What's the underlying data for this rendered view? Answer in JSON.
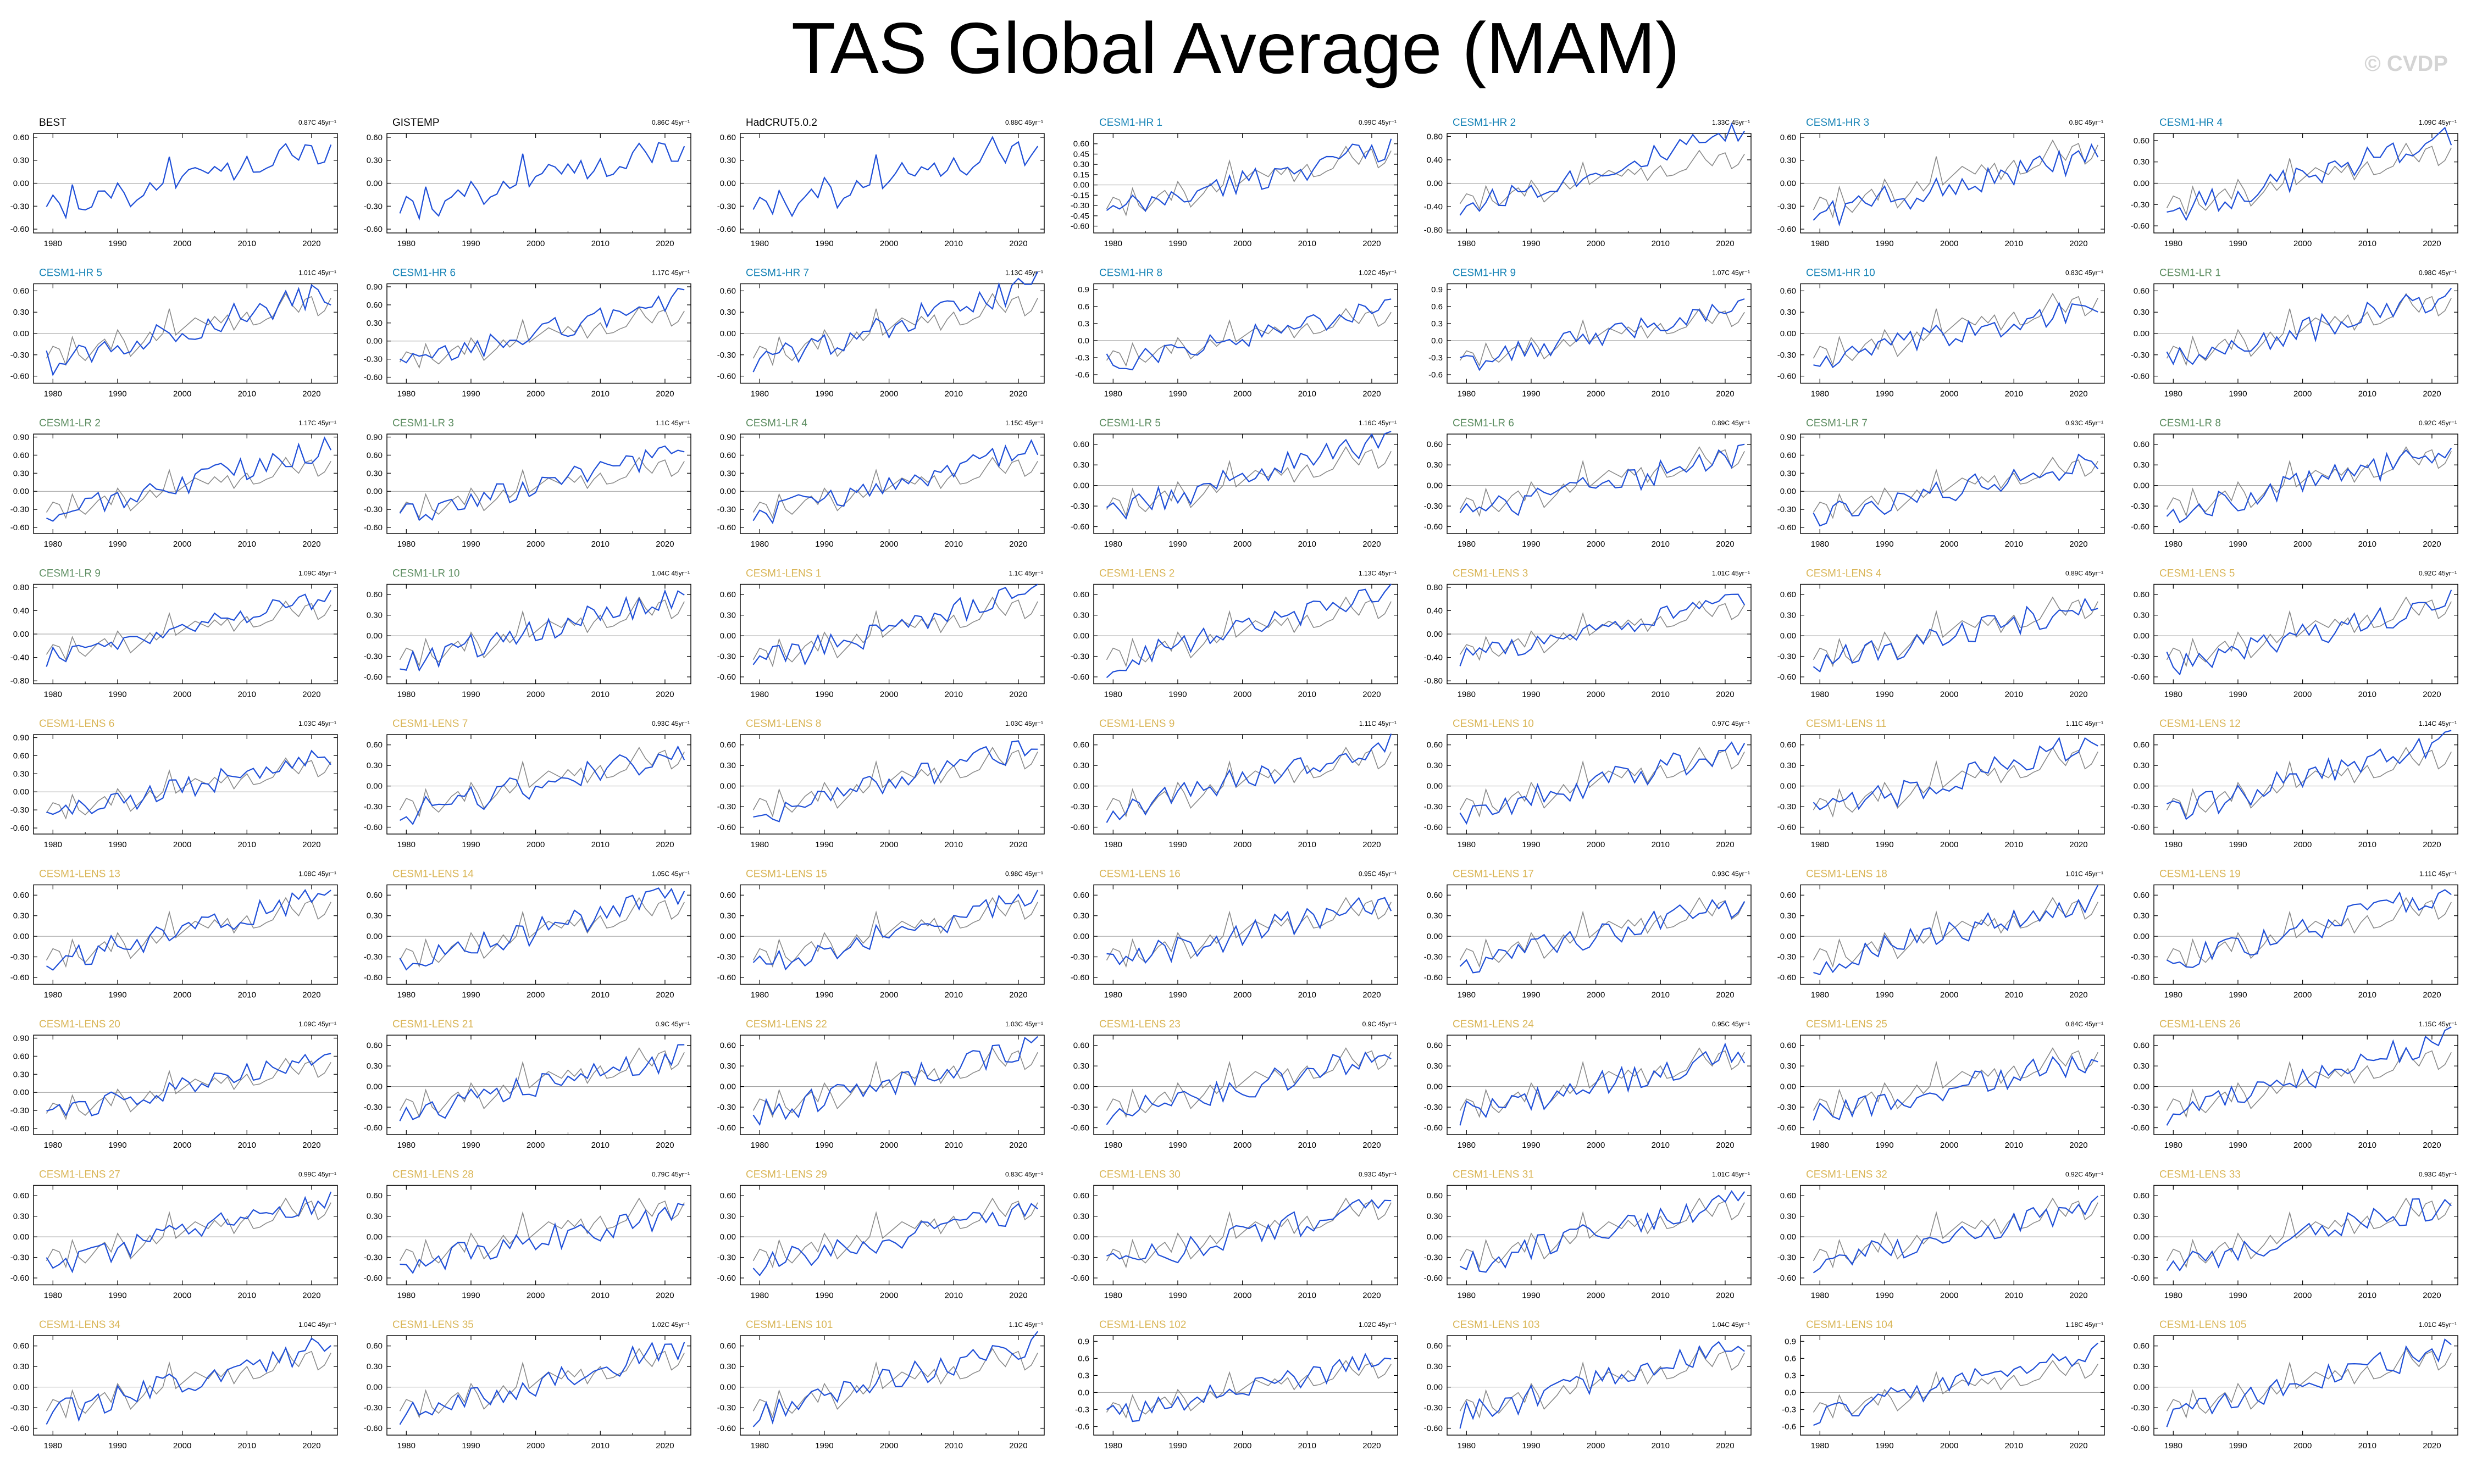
{
  "title": "TAS Global Average (MAM)",
  "watermark": "© CVDP",
  "colors": {
    "observed": "#1f4fd8",
    "reference": "#8a8a8a",
    "title_obs": "#000000",
    "title_hr": "#1683b6",
    "title_lr": "#5e8e62",
    "title_lens": "#d9b556",
    "axis": "#000000",
    "zero_line": "#9a9a9a"
  },
  "x_ticks": [
    "1980",
    "1990",
    "2000",
    "2010",
    "2020"
  ],
  "x_range": [
    1977,
    2024
  ],
  "panels": [
    {
      "name": "BEST",
      "trend": "0.87C 45yr⁻¹",
      "kind": "obs",
      "yticks": [
        "0.60",
        "0.30",
        "0.00",
        "-0.30",
        "-0.60"
      ],
      "ylim": [
        -0.65,
        0.65
      ]
    },
    {
      "name": "GISTEMP",
      "trend": "0.86C 45yr⁻¹",
      "kind": "obs",
      "yticks": [
        "0.60",
        "0.30",
        "0.00",
        "-0.30",
        "-0.60"
      ],
      "ylim": [
        -0.65,
        0.65
      ]
    },
    {
      "name": "HadCRUT5.0.2",
      "trend": "0.88C 45yr⁻¹",
      "kind": "obs",
      "yticks": [
        "0.60",
        "0.30",
        "0.00",
        "-0.30",
        "-0.60"
      ],
      "ylim": [
        -0.65,
        0.65
      ]
    },
    {
      "name": "CESM1-HR 1",
      "trend": "0.99C 45yr⁻¹",
      "kind": "hr",
      "yticks": [
        "0.60",
        "0.45",
        "0.30",
        "0.15",
        "0.00",
        "-0.15",
        "-0.30",
        "-0.45",
        "-0.60"
      ],
      "ylim": [
        -0.7,
        0.75
      ]
    },
    {
      "name": "CESM1-HR 2",
      "trend": "1.33C 45yr⁻¹",
      "kind": "hr",
      "yticks": [
        "0.80",
        "0.40",
        "0.00",
        "-0.40",
        "-0.80"
      ],
      "ylim": [
        -0.85,
        0.85
      ]
    },
    {
      "name": "CESM1-HR 3",
      "trend": "0.8C 45yr⁻¹",
      "kind": "hr",
      "yticks": [
        "0.60",
        "0.30",
        "0.00",
        "-0.30",
        "-0.60"
      ],
      "ylim": [
        -0.65,
        0.65
      ]
    },
    {
      "name": "CESM1-HR 4",
      "trend": "1.09C 45yr⁻¹",
      "kind": "hr",
      "yticks": [
        "0.60",
        "0.30",
        "0.00",
        "-0.30",
        "-0.60"
      ],
      "ylim": [
        -0.7,
        0.7
      ]
    },
    {
      "name": "CESM1-HR 5",
      "trend": "1.01C 45yr⁻¹",
      "kind": "hr",
      "yticks": [
        "0.60",
        "0.30",
        "0.00",
        "-0.30",
        "-0.60"
      ],
      "ylim": [
        -0.7,
        0.7
      ]
    },
    {
      "name": "CESM1-HR 6",
      "trend": "1.17C 45yr⁻¹",
      "kind": "hr",
      "yticks": [
        "0.90",
        "0.60",
        "0.30",
        "0.00",
        "-0.30",
        "-0.60"
      ],
      "ylim": [
        -0.7,
        0.95
      ]
    },
    {
      "name": "CESM1-HR 7",
      "trend": "1.13C 45yr⁻¹",
      "kind": "hr",
      "yticks": [
        "0.60",
        "0.30",
        "0.00",
        "-0.30",
        "-0.60"
      ],
      "ylim": [
        -0.7,
        0.7
      ]
    },
    {
      "name": "CESM1-HR 8",
      "trend": "1.02C 45yr⁻¹",
      "kind": "hr",
      "yticks": [
        "0.9",
        "0.6",
        "0.3",
        "0.0",
        "-0.3",
        "-0.6"
      ],
      "ylim": [
        -0.75,
        1.0
      ]
    },
    {
      "name": "CESM1-HR 9",
      "trend": "1.07C 45yr⁻¹",
      "kind": "hr",
      "yticks": [
        "0.9",
        "0.6",
        "0.3",
        "0.0",
        "-0.3",
        "-0.6"
      ],
      "ylim": [
        -0.75,
        1.0
      ]
    },
    {
      "name": "CESM1-HR 10",
      "trend": "0.83C 45yr⁻¹",
      "kind": "hr",
      "yticks": [
        "0.60",
        "0.30",
        "0.00",
        "-0.30",
        "-0.60"
      ],
      "ylim": [
        -0.7,
        0.7
      ]
    },
    {
      "name": "CESM1-LR 1",
      "trend": "0.98C 45yr⁻¹",
      "kind": "lr",
      "yticks": [
        "0.60",
        "0.30",
        "0.00",
        "-0.30",
        "-0.60"
      ],
      "ylim": [
        -0.7,
        0.7
      ]
    },
    {
      "name": "CESM1-LR 2",
      "trend": "1.17C 45yr⁻¹",
      "kind": "lr",
      "yticks": [
        "0.90",
        "0.60",
        "0.30",
        "0.00",
        "-0.30",
        "-0.60"
      ],
      "ylim": [
        -0.7,
        0.95
      ]
    },
    {
      "name": "CESM1-LR 3",
      "trend": "1.1C 45yr⁻¹",
      "kind": "lr",
      "yticks": [
        "0.90",
        "0.60",
        "0.30",
        "0.00",
        "-0.30",
        "-0.60"
      ],
      "ylim": [
        -0.7,
        0.95
      ]
    },
    {
      "name": "CESM1-LR 4",
      "trend": "1.15C 45yr⁻¹",
      "kind": "lr",
      "yticks": [
        "0.90",
        "0.60",
        "0.30",
        "0.00",
        "-0.30",
        "-0.60"
      ],
      "ylim": [
        -0.7,
        0.95
      ]
    },
    {
      "name": "CESM1-LR 5",
      "trend": "1.16C 45yr⁻¹",
      "kind": "lr",
      "yticks": [
        "0.60",
        "0.30",
        "0.00",
        "-0.30",
        "-0.60"
      ],
      "ylim": [
        -0.7,
        0.75
      ]
    },
    {
      "name": "CESM1-LR 6",
      "trend": "0.89C 45yr⁻¹",
      "kind": "lr",
      "yticks": [
        "0.60",
        "0.30",
        "0.00",
        "-0.30",
        "-0.60"
      ],
      "ylim": [
        -0.7,
        0.75
      ]
    },
    {
      "name": "CESM1-LR 7",
      "trend": "0.93C 45yr⁻¹",
      "kind": "lr",
      "yticks": [
        "0.90",
        "0.60",
        "0.30",
        "0.00",
        "-0.30",
        "-0.60"
      ],
      "ylim": [
        -0.7,
        0.95
      ]
    },
    {
      "name": "CESM1-LR 8",
      "trend": "0.92C 45yr⁻¹",
      "kind": "lr",
      "yticks": [
        "0.60",
        "0.30",
        "0.00",
        "-0.30",
        "-0.60"
      ],
      "ylim": [
        -0.7,
        0.75
      ]
    },
    {
      "name": "CESM1-LR 9",
      "trend": "1.09C 45yr⁻¹",
      "kind": "lr",
      "yticks": [
        "0.80",
        "0.40",
        "0.00",
        "-0.40",
        "-0.80"
      ],
      "ylim": [
        -0.85,
        0.85
      ]
    },
    {
      "name": "CESM1-LR 10",
      "trend": "1.04C 45yr⁻¹",
      "kind": "lr",
      "yticks": [
        "0.60",
        "0.30",
        "0.00",
        "-0.30",
        "-0.60"
      ],
      "ylim": [
        -0.7,
        0.75
      ]
    },
    {
      "name": "CESM1-LENS 1",
      "trend": "1.1C 45yr⁻¹",
      "kind": "lens",
      "yticks": [
        "0.60",
        "0.30",
        "0.00",
        "-0.30",
        "-0.60"
      ],
      "ylim": [
        -0.7,
        0.75
      ]
    },
    {
      "name": "CESM1-LENS 2",
      "trend": "1.13C 45yr⁻¹",
      "kind": "lens",
      "yticks": [
        "0.60",
        "0.30",
        "0.00",
        "-0.30",
        "-0.60"
      ],
      "ylim": [
        -0.7,
        0.75
      ]
    },
    {
      "name": "CESM1-LENS 3",
      "trend": "1.01C 45yr⁻¹",
      "kind": "lens",
      "yticks": [
        "0.80",
        "0.40",
        "0.00",
        "-0.40",
        "-0.80"
      ],
      "ylim": [
        -0.85,
        0.85
      ]
    },
    {
      "name": "CESM1-LENS 4",
      "trend": "0.89C 45yr⁻¹",
      "kind": "lens",
      "yticks": [
        "0.60",
        "0.30",
        "0.00",
        "-0.30",
        "-0.60"
      ],
      "ylim": [
        -0.7,
        0.75
      ]
    },
    {
      "name": "CESM1-LENS 5",
      "trend": "0.92C 45yr⁻¹",
      "kind": "lens",
      "yticks": [
        "0.60",
        "0.30",
        "0.00",
        "-0.30",
        "-0.60"
      ],
      "ylim": [
        -0.7,
        0.75
      ]
    },
    {
      "name": "CESM1-LENS 6",
      "trend": "1.03C 45yr⁻¹",
      "kind": "lens",
      "yticks": [
        "0.90",
        "0.60",
        "0.30",
        "0.00",
        "-0.30",
        "-0.60"
      ],
      "ylim": [
        -0.7,
        0.95
      ]
    },
    {
      "name": "CESM1-LENS 7",
      "trend": "0.93C 45yr⁻¹",
      "kind": "lens",
      "yticks": [
        "0.60",
        "0.30",
        "0.00",
        "-0.30",
        "-0.60"
      ],
      "ylim": [
        -0.7,
        0.75
      ]
    },
    {
      "name": "CESM1-LENS 8",
      "trend": "1.03C 45yr⁻¹",
      "kind": "lens",
      "yticks": [
        "0.60",
        "0.30",
        "0.00",
        "-0.30",
        "-0.60"
      ],
      "ylim": [
        -0.7,
        0.75
      ]
    },
    {
      "name": "CESM1-LENS 9",
      "trend": "1.11C 45yr⁻¹",
      "kind": "lens",
      "yticks": [
        "0.60",
        "0.30",
        "0.00",
        "-0.30",
        "-0.60"
      ],
      "ylim": [
        -0.7,
        0.75
      ]
    },
    {
      "name": "CESM1-LENS 10",
      "trend": "0.97C 45yr⁻¹",
      "kind": "lens",
      "yticks": [
        "0.60",
        "0.30",
        "0.00",
        "-0.30",
        "-0.60"
      ],
      "ylim": [
        -0.7,
        0.75
      ]
    },
    {
      "name": "CESM1-LENS 11",
      "trend": "1.11C 45yr⁻¹",
      "kind": "lens",
      "yticks": [
        "0.60",
        "0.30",
        "0.00",
        "-0.30",
        "-0.60"
      ],
      "ylim": [
        -0.7,
        0.75
      ]
    },
    {
      "name": "CESM1-LENS 12",
      "trend": "1.14C 45yr⁻¹",
      "kind": "lens",
      "yticks": [
        "0.60",
        "0.30",
        "0.00",
        "-0.30",
        "-0.60"
      ],
      "ylim": [
        -0.7,
        0.75
      ]
    },
    {
      "name": "CESM1-LENS 13",
      "trend": "1.08C 45yr⁻¹",
      "kind": "lens",
      "yticks": [
        "0.60",
        "0.30",
        "0.00",
        "-0.30",
        "-0.60"
      ],
      "ylim": [
        -0.7,
        0.75
      ]
    },
    {
      "name": "CESM1-LENS 14",
      "trend": "1.05C 45yr⁻¹",
      "kind": "lens",
      "yticks": [
        "0.60",
        "0.30",
        "0.00",
        "-0.30",
        "-0.60"
      ],
      "ylim": [
        -0.7,
        0.75
      ]
    },
    {
      "name": "CESM1-LENS 15",
      "trend": "0.98C 45yr⁻¹",
      "kind": "lens",
      "yticks": [
        "0.60",
        "0.30",
        "0.00",
        "-0.30",
        "-0.60"
      ],
      "ylim": [
        -0.7,
        0.75
      ]
    },
    {
      "name": "CESM1-LENS 16",
      "trend": "0.95C 45yr⁻¹",
      "kind": "lens",
      "yticks": [
        "0.60",
        "0.30",
        "0.00",
        "-0.30",
        "-0.60"
      ],
      "ylim": [
        -0.7,
        0.75
      ]
    },
    {
      "name": "CESM1-LENS 17",
      "trend": "0.93C 45yr⁻¹",
      "kind": "lens",
      "yticks": [
        "0.60",
        "0.30",
        "0.00",
        "-0.30",
        "-0.60"
      ],
      "ylim": [
        -0.7,
        0.75
      ]
    },
    {
      "name": "CESM1-LENS 18",
      "trend": "1.01C 45yr⁻¹",
      "kind": "lens",
      "yticks": [
        "0.60",
        "0.30",
        "0.00",
        "-0.30",
        "-0.60"
      ],
      "ylim": [
        -0.7,
        0.75
      ]
    },
    {
      "name": "CESM1-LENS 19",
      "trend": "1.11C 45yr⁻¹",
      "kind": "lens",
      "yticks": [
        "0.60",
        "0.30",
        "0.00",
        "-0.30",
        "-0.60"
      ],
      "ylim": [
        -0.7,
        0.75
      ]
    },
    {
      "name": "CESM1-LENS 20",
      "trend": "1.09C 45yr⁻¹",
      "kind": "lens",
      "yticks": [
        "0.90",
        "0.60",
        "0.30",
        "0.00",
        "-0.30",
        "-0.60"
      ],
      "ylim": [
        -0.7,
        0.95
      ]
    },
    {
      "name": "CESM1-LENS 21",
      "trend": "0.9C 45yr⁻¹",
      "kind": "lens",
      "yticks": [
        "0.60",
        "0.30",
        "0.00",
        "-0.30",
        "-0.60"
      ],
      "ylim": [
        -0.7,
        0.75
      ]
    },
    {
      "name": "CESM1-LENS 22",
      "trend": "1.03C 45yr⁻¹",
      "kind": "lens",
      "yticks": [
        "0.60",
        "0.30",
        "0.00",
        "-0.30",
        "-0.60"
      ],
      "ylim": [
        -0.7,
        0.75
      ]
    },
    {
      "name": "CESM1-LENS 23",
      "trend": "0.9C 45yr⁻¹",
      "kind": "lens",
      "yticks": [
        "0.60",
        "0.30",
        "0.00",
        "-0.30",
        "-0.60"
      ],
      "ylim": [
        -0.7,
        0.75
      ]
    },
    {
      "name": "CESM1-LENS 24",
      "trend": "0.95C 45yr⁻¹",
      "kind": "lens",
      "yticks": [
        "0.60",
        "0.30",
        "0.00",
        "-0.30",
        "-0.60"
      ],
      "ylim": [
        -0.7,
        0.75
      ]
    },
    {
      "name": "CESM1-LENS 25",
      "trend": "0.84C 45yr⁻¹",
      "kind": "lens",
      "yticks": [
        "0.60",
        "0.30",
        "0.00",
        "-0.30",
        "-0.60"
      ],
      "ylim": [
        -0.7,
        0.75
      ]
    },
    {
      "name": "CESM1-LENS 26",
      "trend": "1.15C 45yr⁻¹",
      "kind": "lens",
      "yticks": [
        "0.60",
        "0.30",
        "0.00",
        "-0.30",
        "-0.60"
      ],
      "ylim": [
        -0.7,
        0.75
      ]
    },
    {
      "name": "CESM1-LENS 27",
      "trend": "0.99C 45yr⁻¹",
      "kind": "lens",
      "yticks": [
        "0.60",
        "0.30",
        "0.00",
        "-0.30",
        "-0.60"
      ],
      "ylim": [
        -0.7,
        0.75
      ]
    },
    {
      "name": "CESM1-LENS 28",
      "trend": "0.79C 45yr⁻¹",
      "kind": "lens",
      "yticks": [
        "0.60",
        "0.30",
        "0.00",
        "-0.30",
        "-0.60"
      ],
      "ylim": [
        -0.7,
        0.75
      ]
    },
    {
      "name": "CESM1-LENS 29",
      "trend": "0.83C 45yr⁻¹",
      "kind": "lens",
      "yticks": [
        "0.60",
        "0.30",
        "0.00",
        "-0.30",
        "-0.60"
      ],
      "ylim": [
        -0.7,
        0.75
      ]
    },
    {
      "name": "CESM1-LENS 30",
      "trend": "0.93C 45yr⁻¹",
      "kind": "lens",
      "yticks": [
        "0.60",
        "0.30",
        "0.00",
        "-0.30",
        "-0.60"
      ],
      "ylim": [
        -0.7,
        0.75
      ]
    },
    {
      "name": "CESM1-LENS 31",
      "trend": "1.01C 45yr⁻¹",
      "kind": "lens",
      "yticks": [
        "0.60",
        "0.30",
        "0.00",
        "-0.30",
        "-0.60"
      ],
      "ylim": [
        -0.7,
        0.75
      ]
    },
    {
      "name": "CESM1-LENS 32",
      "trend": "0.92C 45yr⁻¹",
      "kind": "lens",
      "yticks": [
        "0.60",
        "0.30",
        "0.00",
        "-0.30",
        "-0.60"
      ],
      "ylim": [
        -0.7,
        0.75
      ]
    },
    {
      "name": "CESM1-LENS 33",
      "trend": "0.93C 45yr⁻¹",
      "kind": "lens",
      "yticks": [
        "0.60",
        "0.30",
        "0.00",
        "-0.30",
        "-0.60"
      ],
      "ylim": [
        -0.7,
        0.75
      ]
    },
    {
      "name": "CESM1-LENS 34",
      "trend": "1.04C 45yr⁻¹",
      "kind": "lens",
      "yticks": [
        "0.60",
        "0.30",
        "0.00",
        "-0.30",
        "-0.60"
      ],
      "ylim": [
        -0.7,
        0.75
      ]
    },
    {
      "name": "CESM1-LENS 35",
      "trend": "1.02C 45yr⁻¹",
      "kind": "lens",
      "yticks": [
        "0.60",
        "0.30",
        "0.00",
        "-0.30",
        "-0.60"
      ],
      "ylim": [
        -0.7,
        0.75
      ]
    },
    {
      "name": "CESM1-LENS 101",
      "trend": "1.1C 45yr⁻¹",
      "kind": "lens",
      "yticks": [
        "0.60",
        "0.30",
        "0.00",
        "-0.30",
        "-0.60"
      ],
      "ylim": [
        -0.7,
        0.75
      ]
    },
    {
      "name": "CESM1-LENS 102",
      "trend": "1.02C 45yr⁻¹",
      "kind": "lens",
      "yticks": [
        "0.9",
        "0.6",
        "0.3",
        "0.0",
        "-0.3",
        "-0.6"
      ],
      "ylim": [
        -0.75,
        1.0
      ]
    },
    {
      "name": "CESM1-LENS 103",
      "trend": "1.04C 45yr⁻¹",
      "kind": "lens",
      "yticks": [
        "0.60",
        "0.30",
        "0.00",
        "-0.30",
        "-0.60"
      ],
      "ylim": [
        -0.7,
        0.75
      ]
    },
    {
      "name": "CESM1-LENS 104",
      "trend": "1.18C 45yr⁻¹",
      "kind": "lens",
      "yticks": [
        "0.9",
        "0.6",
        "0.3",
        "0.0",
        "-0.3",
        "-0.6"
      ],
      "ylim": [
        -0.75,
        1.0
      ]
    },
    {
      "name": "CESM1-LENS 105",
      "trend": "1.01C 45yr⁻¹",
      "kind": "lens",
      "yticks": [
        "0.60",
        "0.30",
        "0.00",
        "-0.30",
        "-0.60"
      ],
      "ylim": [
        -0.7,
        0.75
      ]
    }
  ],
  "chart_data": {
    "type": "line",
    "title": "TAS Global Average (MAM)",
    "panel_count": 63,
    "grid": false,
    "xlabel": "",
    "ylabel": "",
    "x": [
      1979,
      1980,
      1981,
      1982,
      1983,
      1984,
      1985,
      1986,
      1987,
      1988,
      1989,
      1990,
      1991,
      1992,
      1993,
      1994,
      1995,
      1996,
      1997,
      1998,
      1999,
      2000,
      2001,
      2002,
      2003,
      2004,
      2005,
      2006,
      2007,
      2008,
      2009,
      2010,
      2011,
      2012,
      2013,
      2014,
      2015,
      2016,
      2017,
      2018,
      2019,
      2020,
      2021,
      2022,
      2023
    ],
    "reference_series": [
      -0.35,
      -0.18,
      -0.22,
      -0.44,
      -0.05,
      -0.3,
      -0.38,
      -0.27,
      -0.15,
      -0.08,
      -0.22,
      0.05,
      -0.1,
      -0.32,
      -0.22,
      -0.12,
      0.02,
      -0.1,
      0.0,
      0.35,
      -0.02,
      0.06,
      0.14,
      0.22,
      0.17,
      0.12,
      0.24,
      0.15,
      0.26,
      0.05,
      0.2,
      0.3,
      0.12,
      0.14,
      0.2,
      0.24,
      0.4,
      0.56,
      0.4,
      0.3,
      0.48,
      0.52,
      0.25,
      0.32,
      0.5
    ]
  }
}
